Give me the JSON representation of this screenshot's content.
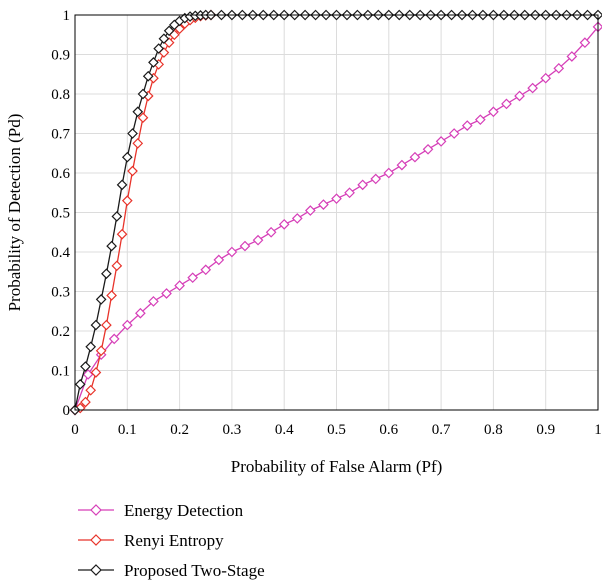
{
  "chart_data": {
    "type": "line",
    "xlabel": "Probability of False Alarm (Pf)",
    "ylabel": "Probability of Detection (Pd)",
    "xlim": [
      0,
      1
    ],
    "ylim": [
      0,
      1
    ],
    "xticks": [
      "0",
      "0.1",
      "0.2",
      "0.3",
      "0.4",
      "0.5",
      "0.6",
      "0.7",
      "0.8",
      "0.9",
      "1"
    ],
    "yticks": [
      "0",
      "0.1",
      "0.2",
      "0.3",
      "0.4",
      "0.5",
      "0.6",
      "0.7",
      "0.8",
      "0.9",
      "1"
    ],
    "grid": true,
    "legend_position": "below",
    "marker": "diamond",
    "series": [
      {
        "name": "Energy Detection",
        "color": "#d63fb8",
        "x": [
          0,
          0.025,
          0.05,
          0.075,
          0.1,
          0.125,
          0.15,
          0.175,
          0.2,
          0.225,
          0.25,
          0.275,
          0.3,
          0.325,
          0.35,
          0.375,
          0.4,
          0.425,
          0.45,
          0.475,
          0.5,
          0.525,
          0.55,
          0.575,
          0.6,
          0.625,
          0.65,
          0.675,
          0.7,
          0.725,
          0.75,
          0.775,
          0.8,
          0.825,
          0.85,
          0.875,
          0.9,
          0.925,
          0.95,
          0.975,
          1.0
        ],
        "y": [
          0,
          0.09,
          0.14,
          0.18,
          0.215,
          0.245,
          0.275,
          0.295,
          0.315,
          0.335,
          0.355,
          0.38,
          0.4,
          0.415,
          0.43,
          0.45,
          0.47,
          0.485,
          0.505,
          0.52,
          0.535,
          0.55,
          0.57,
          0.585,
          0.6,
          0.62,
          0.64,
          0.66,
          0.68,
          0.7,
          0.72,
          0.735,
          0.755,
          0.775,
          0.795,
          0.815,
          0.84,
          0.865,
          0.895,
          0.93,
          0.97
        ]
      },
      {
        "name": "Renyi Entropy",
        "color": "#e8332a",
        "x": [
          0,
          0.01,
          0.02,
          0.03,
          0.04,
          0.05,
          0.06,
          0.07,
          0.08,
          0.09,
          0.1,
          0.11,
          0.12,
          0.13,
          0.14,
          0.15,
          0.16,
          0.17,
          0.18,
          0.19,
          0.2,
          0.21,
          0.22,
          0.23,
          0.24,
          0.25,
          0.26
        ],
        "y": [
          0,
          0.005,
          0.02,
          0.05,
          0.095,
          0.15,
          0.215,
          0.29,
          0.365,
          0.445,
          0.53,
          0.605,
          0.675,
          0.74,
          0.795,
          0.84,
          0.875,
          0.905,
          0.93,
          0.95,
          0.965,
          0.978,
          0.987,
          0.993,
          0.997,
          0.999,
          1.0
        ]
      },
      {
        "name": "Proposed Two-Stage",
        "color": "#1a1a1a",
        "x": [
          0,
          0.01,
          0.02,
          0.03,
          0.04,
          0.05,
          0.06,
          0.07,
          0.08,
          0.09,
          0.1,
          0.11,
          0.12,
          0.13,
          0.14,
          0.15,
          0.16,
          0.17,
          0.18,
          0.19,
          0.2,
          0.21,
          0.22,
          0.23,
          0.24,
          0.25,
          0.26,
          0.28,
          0.3,
          0.32,
          0.34,
          0.36,
          0.38,
          0.4,
          0.42,
          0.44,
          0.46,
          0.48,
          0.5,
          0.52,
          0.54,
          0.56,
          0.58,
          0.6,
          0.62,
          0.64,
          0.66,
          0.68,
          0.7,
          0.72,
          0.74,
          0.76,
          0.78,
          0.8,
          0.82,
          0.84,
          0.86,
          0.88,
          0.9,
          0.92,
          0.94,
          0.96,
          0.98,
          1.0
        ],
        "y": [
          0,
          0.065,
          0.11,
          0.16,
          0.215,
          0.28,
          0.345,
          0.415,
          0.49,
          0.57,
          0.64,
          0.7,
          0.755,
          0.8,
          0.845,
          0.88,
          0.915,
          0.94,
          0.96,
          0.975,
          0.985,
          0.992,
          0.996,
          0.998,
          0.999,
          1.0,
          1.0,
          1.0,
          1.0,
          1.0,
          1.0,
          1.0,
          1.0,
          1.0,
          1.0,
          1.0,
          1.0,
          1.0,
          1.0,
          1.0,
          1.0,
          1.0,
          1.0,
          1.0,
          1.0,
          1.0,
          1.0,
          1.0,
          1.0,
          1.0,
          1.0,
          1.0,
          1.0,
          1.0,
          1.0,
          1.0,
          1.0,
          1.0,
          1.0,
          1.0,
          1.0,
          1.0,
          1.0,
          1.0
        ]
      }
    ]
  }
}
